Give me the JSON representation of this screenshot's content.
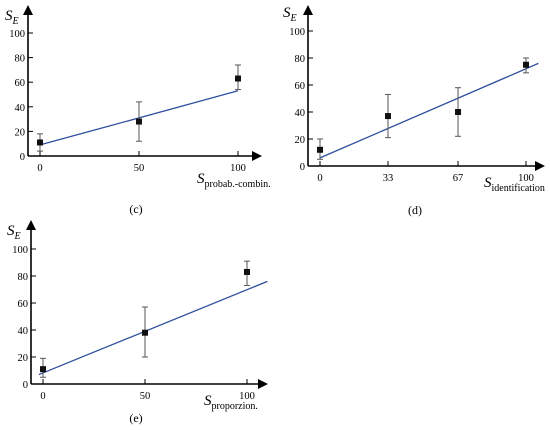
{
  "chart_data": [
    {
      "type": "scatter",
      "caption": "(c)",
      "xlabel": {
        "symbol": "S",
        "subscript": "probab.-combin."
      },
      "ylabel": {
        "symbol": "S",
        "subscript": "E"
      },
      "xticks": [
        0,
        50,
        100
      ],
      "yticks": [
        0,
        20,
        40,
        60,
        80,
        100
      ],
      "xlim": [
        0,
        100
      ],
      "ylim": [
        0,
        100
      ],
      "points": [
        {
          "x": 0,
          "y": 11,
          "err_low": 4,
          "err_high": 18
        },
        {
          "x": 50,
          "y": 28,
          "err_low": 12,
          "err_high": 44
        },
        {
          "x": 100,
          "y": 63,
          "err_low": 54,
          "err_high": 74
        }
      ],
      "fit_line": {
        "x": [
          0,
          100
        ],
        "y": [
          9,
          53
        ]
      }
    },
    {
      "type": "scatter",
      "caption": "(d)",
      "xlabel": {
        "symbol": "S",
        "subscript": "identification"
      },
      "ylabel": {
        "symbol": "S",
        "subscript": "E"
      },
      "xticks": [
        0,
        33,
        67,
        100
      ],
      "yticks": [
        0,
        20,
        40,
        60,
        80,
        100
      ],
      "xlim": [
        0,
        100
      ],
      "ylim": [
        0,
        100
      ],
      "points": [
        {
          "x": 0,
          "y": 12,
          "err_low": 5,
          "err_high": 20
        },
        {
          "x": 33,
          "y": 37,
          "err_low": 21,
          "err_high": 53
        },
        {
          "x": 67,
          "y": 40,
          "err_low": 22,
          "err_high": 58
        },
        {
          "x": 100,
          "y": 75,
          "err_low": 69,
          "err_high": 80
        }
      ],
      "fit_line": {
        "x": [
          0,
          106
        ],
        "y": [
          6,
          76
        ]
      }
    },
    {
      "type": "scatter",
      "caption": "(e)",
      "xlabel": {
        "symbol": "S",
        "subscript": "proporzion."
      },
      "ylabel": {
        "symbol": "S",
        "subscript": "E"
      },
      "xticks": [
        0,
        50,
        100
      ],
      "yticks": [
        0,
        20,
        40,
        60,
        80,
        100
      ],
      "xlim": [
        0,
        100
      ],
      "ylim": [
        0,
        100
      ],
      "points": [
        {
          "x": 0,
          "y": 11,
          "err_low": 5,
          "err_high": 19
        },
        {
          "x": 50,
          "y": 38,
          "err_low": 20,
          "err_high": 57
        },
        {
          "x": 100,
          "y": 83,
          "err_low": 73,
          "err_high": 91
        }
      ],
      "fit_line": {
        "x": [
          -2,
          110
        ],
        "y": [
          7,
          76
        ]
      }
    }
  ]
}
